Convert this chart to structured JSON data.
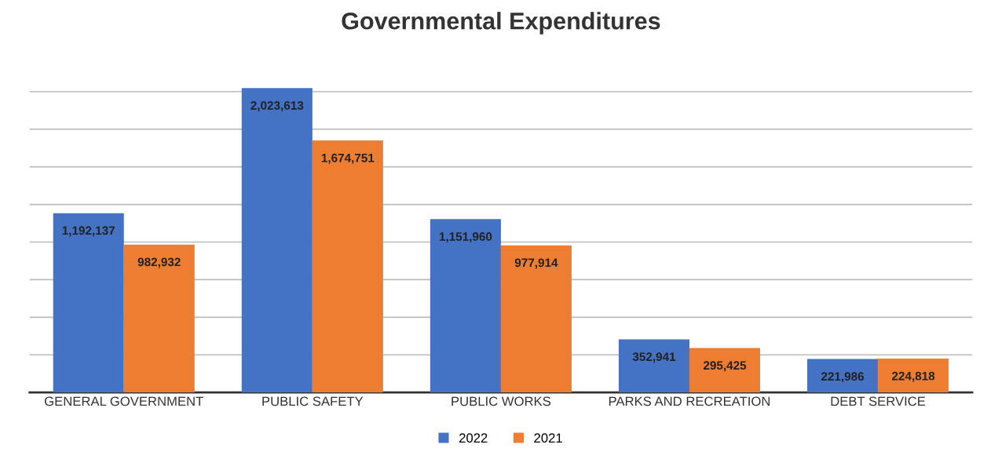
{
  "chart_data": {
    "type": "bar",
    "title": "Governmental Expenditures",
    "categories": [
      "GENERAL GOVERNMENT",
      "PUBLIC SAFETY",
      "PUBLIC WORKS",
      "PARKS AND RECREATION",
      "DEBT SERVICE"
    ],
    "series": [
      {
        "name": "2022",
        "color": "#4472c4",
        "values": [
          1192137,
          2023613,
          1151960,
          352941,
          221986
        ],
        "value_labels": [
          "1,192,137",
          "2,023,613",
          "1,151,960",
          "352,941",
          "221,986"
        ]
      },
      {
        "name": "2021",
        "color": "#ed7d31",
        "values": [
          982932,
          1674751,
          977914,
          295425,
          224818
        ],
        "value_labels": [
          "982,932",
          "1,674,751",
          "977,914",
          "295,425",
          "224,818"
        ]
      }
    ],
    "tick_labels": "x",
    "grid": "y",
    "legend": "bottom"
  }
}
